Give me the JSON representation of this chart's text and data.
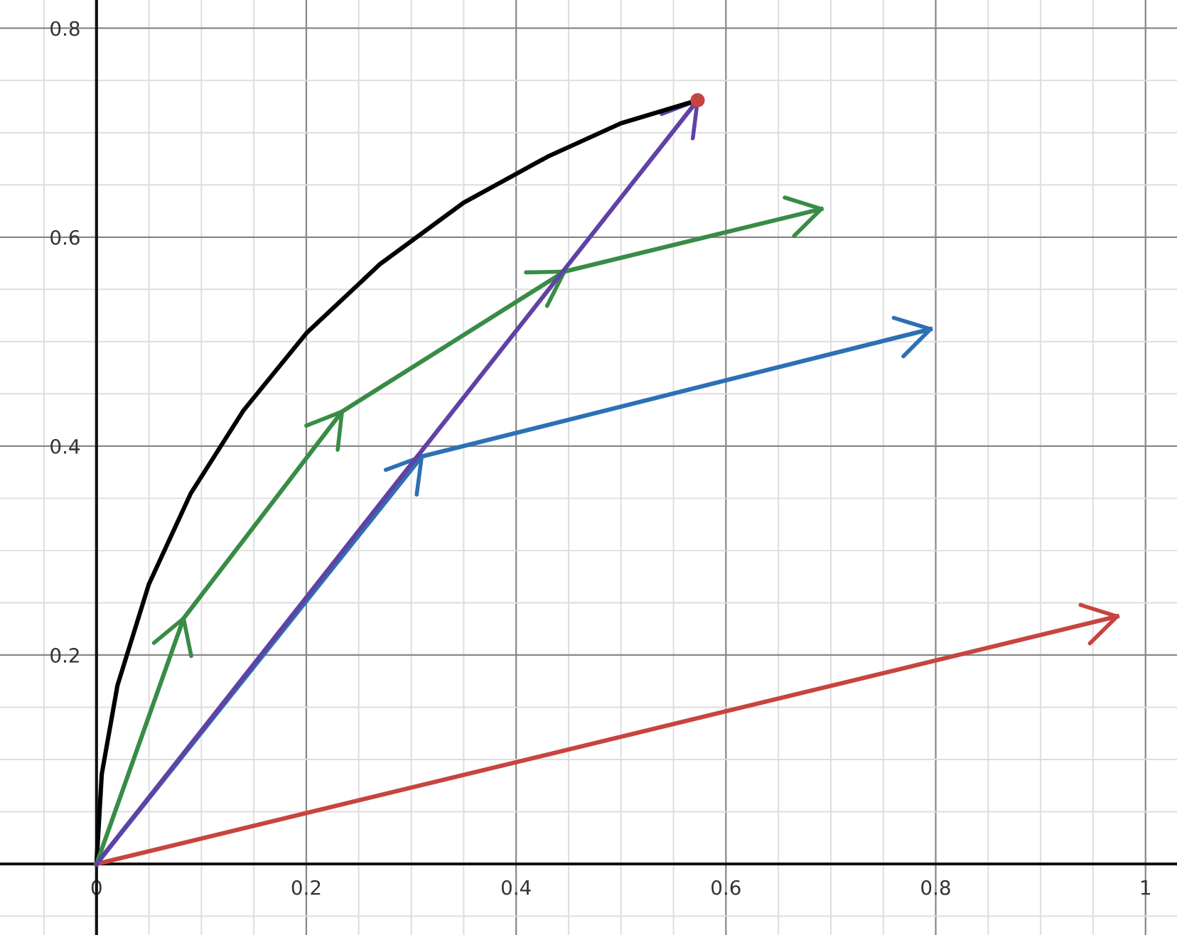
{
  "chart_data": {
    "type": "line",
    "xlim": [
      -0.092,
      1.03
    ],
    "ylim": [
      -0.068,
      0.827
    ],
    "xticks": [
      0,
      0.2,
      0.4,
      0.6,
      0.8,
      1
    ],
    "yticks": [
      0.2,
      0.4,
      0.6,
      0.8
    ],
    "grid": true,
    "series": [
      {
        "color": "#000000",
        "marker": "none",
        "x": [
          0,
          0.005,
          0.02,
          0.05,
          0.09,
          0.14,
          0.2,
          0.27,
          0.35,
          0.43,
          0.5,
          0.573
        ],
        "values": [
          0,
          0.086,
          0.171,
          0.268,
          0.355,
          0.434,
          0.508,
          0.574,
          0.633,
          0.677,
          0.709,
          0.731
        ]
      },
      {
        "color": "#c74440",
        "x": [
          0,
          0.973
        ],
        "values": [
          0,
          0.237
        ]
      },
      {
        "color": "#2d70b3",
        "x": [
          0,
          0.31,
          0.795
        ],
        "values": [
          0,
          0.39,
          0.512
        ]
      },
      {
        "color": "#388c46",
        "x": [
          0,
          0.083,
          0.234,
          0.446,
          0.691
        ],
        "values": [
          0,
          0.235,
          0.433,
          0.567,
          0.627
        ]
      },
      {
        "color": "#6042a6",
        "x": [
          0,
          0.573
        ],
        "values": [
          0,
          0.731
        ]
      },
      {
        "type": "scatter",
        "color": "#c74440",
        "marker": "circle",
        "x": [
          0.573
        ],
        "values": [
          0.731
        ]
      }
    ]
  }
}
